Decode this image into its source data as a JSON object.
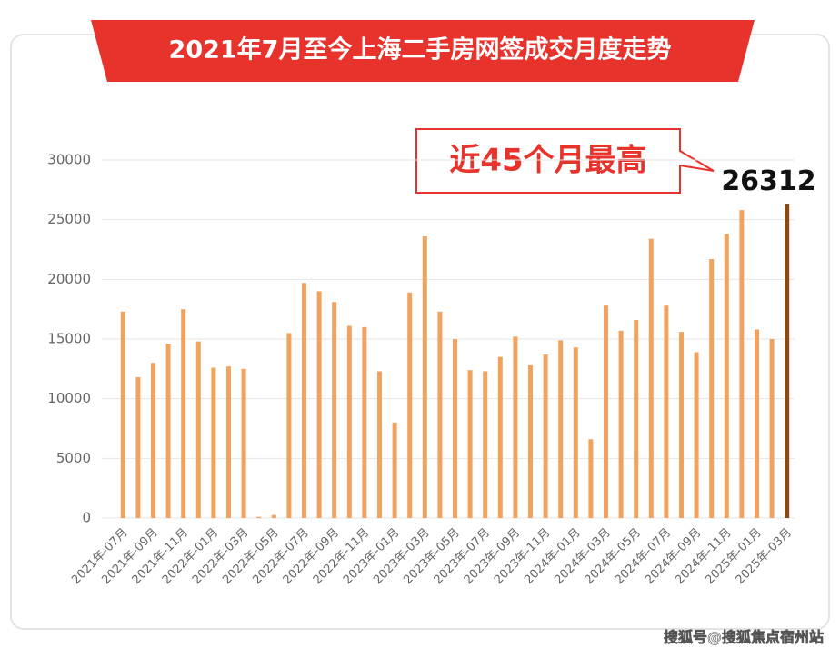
{
  "chart_data": {
    "type": "bar",
    "title": "2021年7月至今上海二手房网签成交月度走势",
    "annotation": "近45个月最高",
    "watermark": "搜狐号@搜狐焦点宿州站",
    "categories": [
      "2021年-07月",
      null,
      "2021年-09月",
      null,
      "2021年-11月",
      null,
      "2022年-01月",
      null,
      "2022年-03月",
      null,
      "2022年-05月",
      null,
      "2022年-07月",
      null,
      "2022年-09月",
      null,
      "2022年-11月",
      null,
      "2023年-01月",
      null,
      "2023年-03月",
      null,
      "2023年-05月",
      null,
      "2023年-07月",
      null,
      "2023年-09月",
      null,
      "2023年-11月",
      null,
      "2024年-01月",
      null,
      "2024年-03月",
      null,
      "2024年-05月",
      null,
      "2024年-07月",
      null,
      "2024年-09月",
      null,
      "2024年-11月",
      null,
      "2025年-01月",
      null,
      "2025年-03月"
    ],
    "values": [
      17300,
      11800,
      13000,
      14600,
      17500,
      14800,
      12600,
      12700,
      12500,
      100,
      250,
      15500,
      19700,
      19000,
      18100,
      16100,
      16000,
      12300,
      8000,
      18900,
      23600,
      17300,
      15000,
      12400,
      12300,
      13500,
      15200,
      12800,
      13700,
      14900,
      14300,
      6600,
      17800,
      15700,
      16600,
      23400,
      17800,
      15600,
      13900,
      21700,
      23800,
      25800,
      15800,
      15000,
      26312
    ],
    "colors": [
      "#f0a25e",
      "#f0a25e",
      "#f0a25e",
      "#f0a25e",
      "#f0a25e",
      "#f0a25e",
      "#f0a25e",
      "#f0a25e",
      "#f0a25e",
      "#f0a25e",
      "#f0a25e",
      "#f0a25e",
      "#f0a25e",
      "#f0a25e",
      "#f0a25e",
      "#f0a25e",
      "#f0a25e",
      "#f0a25e",
      "#f0a25e",
      "#f0a25e",
      "#f0a25e",
      "#f0a25e",
      "#f0a25e",
      "#f0a25e",
      "#f0a25e",
      "#f0a25e",
      "#f0a25e",
      "#f0a25e",
      "#f0a25e",
      "#f0a25e",
      "#f0a25e",
      "#f0a25e",
      "#f0a25e",
      "#f0a25e",
      "#f0a25e",
      "#f0a25e",
      "#f0a25e",
      "#f0a25e",
      "#f0a25e",
      "#f0a25e",
      "#f0a25e",
      "#f0a25e",
      "#f0a25e",
      "#f0a25e",
      "#8a4a14"
    ],
    "ylim": [
      0,
      30000
    ],
    "yticks": [
      0,
      5000,
      10000,
      15000,
      20000,
      25000,
      30000
    ],
    "grid": true
  }
}
